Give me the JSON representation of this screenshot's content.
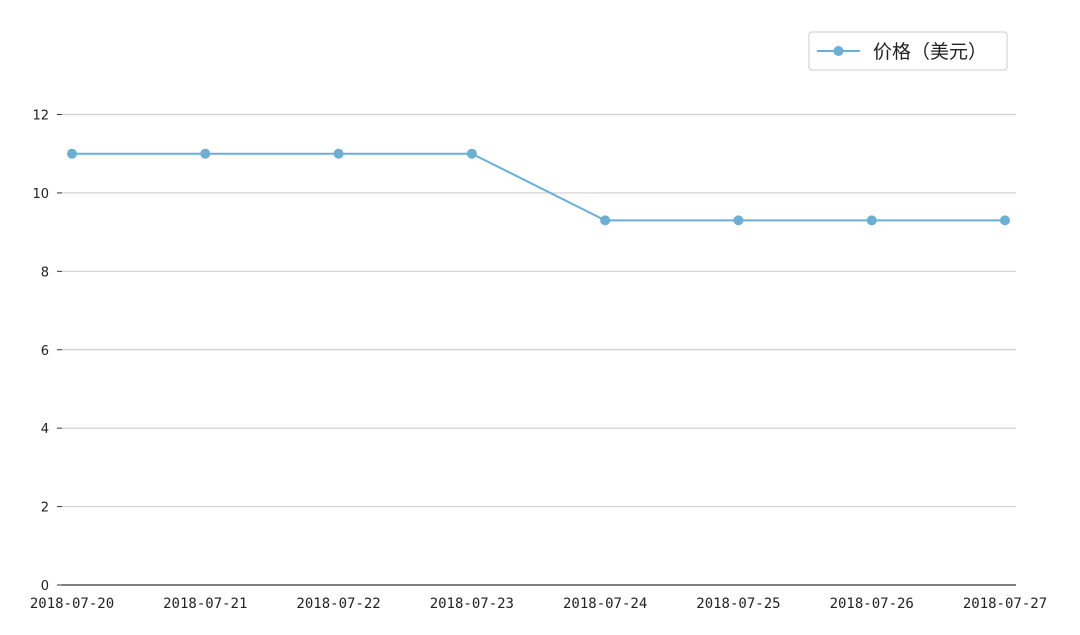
{
  "chart_data": {
    "type": "line",
    "title": "",
    "xlabel": "",
    "ylabel": "",
    "x": [
      "2018-07-20",
      "2018-07-21",
      "2018-07-22",
      "2018-07-23",
      "2018-07-24",
      "2018-07-25",
      "2018-07-26",
      "2018-07-27"
    ],
    "series": [
      {
        "name": "价格（美元）",
        "values": [
          11,
          11,
          11,
          11,
          9.3,
          9.3,
          9.3,
          9.3
        ],
        "color": "#6baed6"
      }
    ],
    "ylim": [
      0,
      12
    ],
    "yticks": [
      0,
      2,
      4,
      6,
      8,
      10,
      12
    ],
    "grid": "horizontal",
    "legend_position": "top-right"
  }
}
